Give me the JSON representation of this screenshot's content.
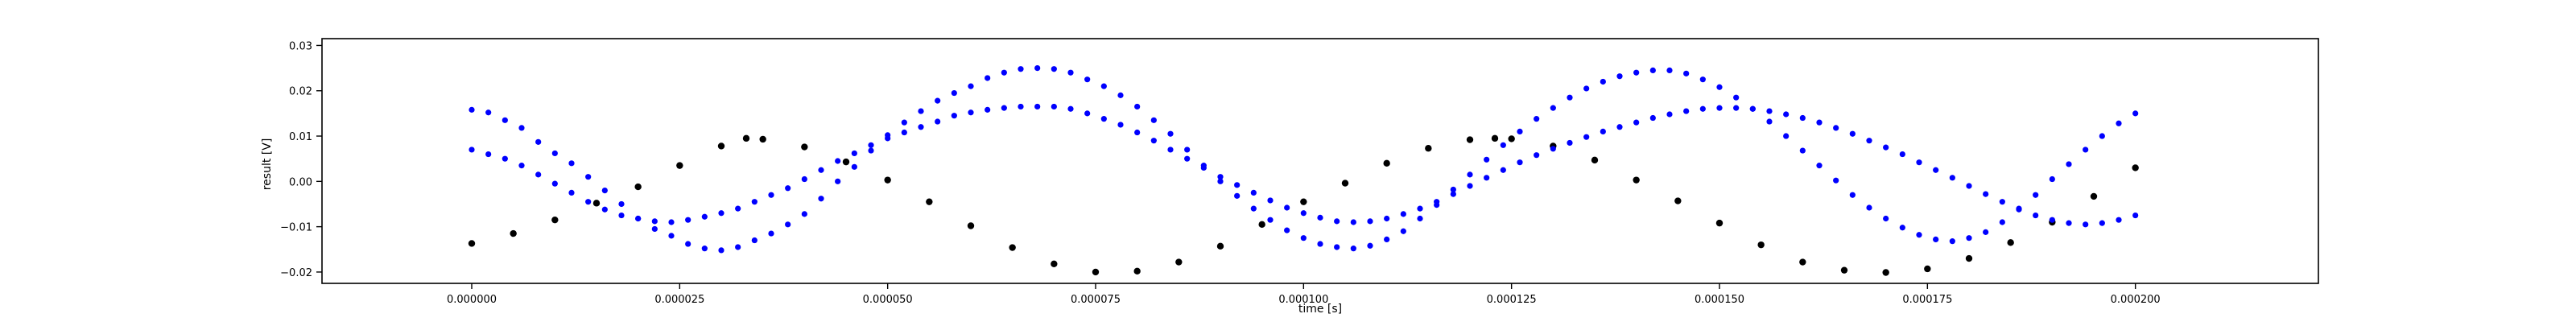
{
  "chart_data": {
    "type": "scatter",
    "xlabel": "time [s]",
    "ylabel": "result [V]",
    "xlim": [
      -1.8e-05,
      0.000222
    ],
    "ylim": [
      -0.0225,
      0.0315
    ],
    "x_ticks": [
      0.0,
      2.5e-05,
      5e-05,
      7.5e-05,
      0.0001,
      0.000125,
      0.00015,
      0.000175,
      0.0002
    ],
    "x_tick_labels": [
      "0.000000",
      "0.000025",
      "0.000050",
      "0.000075",
      "0.000100",
      "0.000125",
      "0.000150",
      "0.000175",
      "0.000200"
    ],
    "y_ticks": [
      -0.02,
      -0.01,
      0.0,
      0.01,
      0.02,
      0.03
    ],
    "y_tick_labels": [
      "−0.02",
      "−0.01",
      "0.00",
      "0.01",
      "0.02",
      "0.03"
    ],
    "grid": false,
    "legend": "none",
    "colors": {
      "reference": "#000000",
      "measured": "#0000ff"
    },
    "series": [
      {
        "marker": "dot",
        "color": "#000000",
        "x": [
          0.0,
          5e-06,
          1e-05,
          1.5e-05,
          2e-05,
          2.5e-05,
          3e-05,
          3.3e-05,
          3.5e-05,
          4e-05,
          4.5e-05,
          5e-05,
          5.5e-05,
          6e-05,
          6.5e-05,
          7e-05,
          7.5e-05,
          8e-05,
          8.5e-05,
          9e-05,
          9.5e-05,
          0.0001,
          0.000105,
          0.00011,
          0.000115,
          0.00012,
          0.000123,
          0.000125,
          0.00013,
          0.000135,
          0.00014,
          0.000145,
          0.00015,
          0.000155,
          0.00016,
          0.000165,
          0.00017,
          0.000175,
          0.00018,
          0.000185,
          0.00019,
          0.000195,
          0.0002
        ],
        "y": [
          -0.0137,
          -0.0115,
          -0.0085,
          -0.0048,
          -0.0012,
          0.0035,
          0.0078,
          0.0095,
          0.0093,
          0.0076,
          0.0043,
          0.0003,
          -0.0045,
          -0.0098,
          -0.0146,
          -0.0182,
          -0.02,
          -0.0198,
          -0.0178,
          -0.0143,
          -0.0095,
          -0.0045,
          -0.0004,
          0.004,
          0.0073,
          0.0092,
          0.0095,
          0.0094,
          0.0078,
          0.0047,
          0.0003,
          -0.0043,
          -0.0092,
          -0.014,
          -0.0178,
          -0.0196,
          -0.0201,
          -0.0193,
          -0.017,
          -0.0135,
          -0.009,
          -0.0033,
          0.003
        ]
      },
      {
        "marker": "dot",
        "color": "#0000ff",
        "x": [
          0.0,
          2e-06,
          4e-06,
          6e-06,
          8e-06,
          1e-05,
          1.2e-05,
          1.4e-05,
          1.6e-05,
          1.8e-05,
          2e-05,
          2.2e-05,
          2.4e-05,
          2.6e-05,
          2.8e-05,
          3e-05,
          3.2e-05,
          3.4e-05,
          3.6e-05,
          3.8e-05,
          4e-05,
          4.2e-05,
          4.4e-05,
          4.6e-05,
          4.8e-05,
          5e-05,
          5.2e-05,
          5.4e-05,
          5.6e-05,
          5.8e-05,
          6e-05,
          6.2e-05,
          6.4e-05,
          6.6e-05,
          6.8e-05,
          7e-05,
          7.2e-05,
          7.4e-05,
          7.6e-05,
          7.8e-05,
          8e-05,
          8.2e-05,
          8.4e-05,
          8.6e-05,
          8.8e-05,
          9e-05,
          9.2e-05,
          9.4e-05,
          9.6e-05,
          9.8e-05,
          0.0001,
          0.000102,
          0.000104,
          0.000106,
          0.000108,
          0.00011,
          0.000112,
          0.000114,
          0.000116,
          0.000118,
          0.00012,
          0.000122,
          0.000124,
          0.000126,
          0.000128,
          0.00013,
          0.000132,
          0.000134,
          0.000136,
          0.000138,
          0.00014,
          0.000142,
          0.000144,
          0.000146,
          0.000148,
          0.00015,
          0.000152,
          0.000154,
          0.000156,
          0.000158,
          0.00016,
          0.000162,
          0.000164,
          0.000166,
          0.000168,
          0.00017,
          0.000172,
          0.000174,
          0.000176,
          0.000178,
          0.00018,
          0.000182,
          0.000184,
          0.000186,
          0.000188,
          0.00019,
          0.000192,
          0.000194,
          0.000196,
          0.000198,
          0.0002
        ],
        "y": [
          0.0158,
          0.0152,
          0.0135,
          0.0118,
          0.0087,
          0.0062,
          0.004,
          0.001,
          -0.002,
          -0.005,
          -0.0082,
          -0.0105,
          -0.012,
          -0.0138,
          -0.0148,
          -0.0152,
          -0.0145,
          -0.013,
          -0.0115,
          -0.0095,
          -0.0072,
          -0.0038,
          0.0,
          0.0032,
          0.0068,
          0.0102,
          0.013,
          0.0155,
          0.0178,
          0.0195,
          0.021,
          0.0228,
          0.024,
          0.0248,
          0.025,
          0.0248,
          0.024,
          0.0225,
          0.021,
          0.019,
          0.0165,
          0.0135,
          0.0105,
          0.007,
          0.0035,
          0.0,
          -0.0032,
          -0.006,
          -0.0085,
          -0.0108,
          -0.0125,
          -0.0138,
          -0.0145,
          -0.0148,
          -0.0142,
          -0.0128,
          -0.011,
          -0.0082,
          -0.0052,
          -0.0018,
          0.0015,
          0.0048,
          0.008,
          0.011,
          0.0138,
          0.0162,
          0.0185,
          0.0205,
          0.022,
          0.0232,
          0.024,
          0.0245,
          0.0245,
          0.0238,
          0.0225,
          0.0208,
          0.0185,
          0.016,
          0.0132,
          0.01,
          0.0068,
          0.0035,
          0.0002,
          -0.003,
          -0.0058,
          -0.0082,
          -0.0102,
          -0.0118,
          -0.0128,
          -0.0132,
          -0.0125,
          -0.0112,
          -0.009,
          -0.0062,
          -0.003,
          0.0005,
          0.0038,
          0.007,
          0.01,
          0.0128,
          0.015
        ]
      },
      {
        "marker": "dot",
        "color": "#0000ff",
        "x": [
          0.0,
          2e-06,
          4e-06,
          6e-06,
          8e-06,
          1e-05,
          1.2e-05,
          1.4e-05,
          1.6e-05,
          1.8e-05,
          2e-05,
          2.2e-05,
          2.4e-05,
          2.6e-05,
          2.8e-05,
          3e-05,
          3.2e-05,
          3.4e-05,
          3.6e-05,
          3.8e-05,
          4e-05,
          4.2e-05,
          4.4e-05,
          4.6e-05,
          4.8e-05,
          5e-05,
          5.2e-05,
          5.4e-05,
          5.6e-05,
          5.8e-05,
          6e-05,
          6.2e-05,
          6.4e-05,
          6.6e-05,
          6.8e-05,
          7e-05,
          7.2e-05,
          7.4e-05,
          7.6e-05,
          7.8e-05,
          8e-05,
          8.2e-05,
          8.4e-05,
          8.6e-05,
          8.8e-05,
          9e-05,
          9.2e-05,
          9.4e-05,
          9.6e-05,
          9.8e-05,
          0.0001,
          0.000102,
          0.000104,
          0.000106,
          0.000108,
          0.00011,
          0.000112,
          0.000114,
          0.000116,
          0.000118,
          0.00012,
          0.000122,
          0.000124,
          0.000126,
          0.000128,
          0.00013,
          0.000132,
          0.000134,
          0.000136,
          0.000138,
          0.00014,
          0.000142,
          0.000144,
          0.000146,
          0.000148,
          0.00015,
          0.000152,
          0.000154,
          0.000156,
          0.000158,
          0.00016,
          0.000162,
          0.000164,
          0.000166,
          0.000168,
          0.00017,
          0.000172,
          0.000174,
          0.000176,
          0.000178,
          0.00018,
          0.000182,
          0.000184,
          0.000186,
          0.000188,
          0.00019,
          0.000192,
          0.000194,
          0.000196,
          0.000198,
          0.0002
        ],
        "y": [
          0.007,
          0.006,
          0.005,
          0.0035,
          0.0015,
          -0.0005,
          -0.0025,
          -0.0045,
          -0.0062,
          -0.0075,
          -0.0082,
          -0.0088,
          -0.009,
          -0.0085,
          -0.0078,
          -0.007,
          -0.006,
          -0.0045,
          -0.003,
          -0.0015,
          0.0005,
          0.0025,
          0.0045,
          0.0062,
          0.008,
          0.0095,
          0.0108,
          0.012,
          0.0132,
          0.0145,
          0.0152,
          0.0158,
          0.0162,
          0.0165,
          0.0165,
          0.0165,
          0.016,
          0.015,
          0.0138,
          0.0125,
          0.0108,
          0.009,
          0.007,
          0.005,
          0.003,
          0.001,
          -0.0008,
          -0.0025,
          -0.0042,
          -0.0058,
          -0.007,
          -0.008,
          -0.0088,
          -0.009,
          -0.0088,
          -0.0082,
          -0.0072,
          -0.006,
          -0.0045,
          -0.0028,
          -0.001,
          0.0008,
          0.0025,
          0.0042,
          0.0058,
          0.0072,
          0.0085,
          0.0098,
          0.011,
          0.012,
          0.013,
          0.014,
          0.0148,
          0.0155,
          0.016,
          0.0162,
          0.0162,
          0.016,
          0.0155,
          0.0148,
          0.014,
          0.013,
          0.0118,
          0.0105,
          0.009,
          0.0075,
          0.006,
          0.0042,
          0.0025,
          0.0008,
          -0.001,
          -0.0028,
          -0.0045,
          -0.006,
          -0.0075,
          -0.0085,
          -0.0092,
          -0.0095,
          -0.0092,
          -0.0085,
          -0.0075
        ]
      }
    ]
  }
}
